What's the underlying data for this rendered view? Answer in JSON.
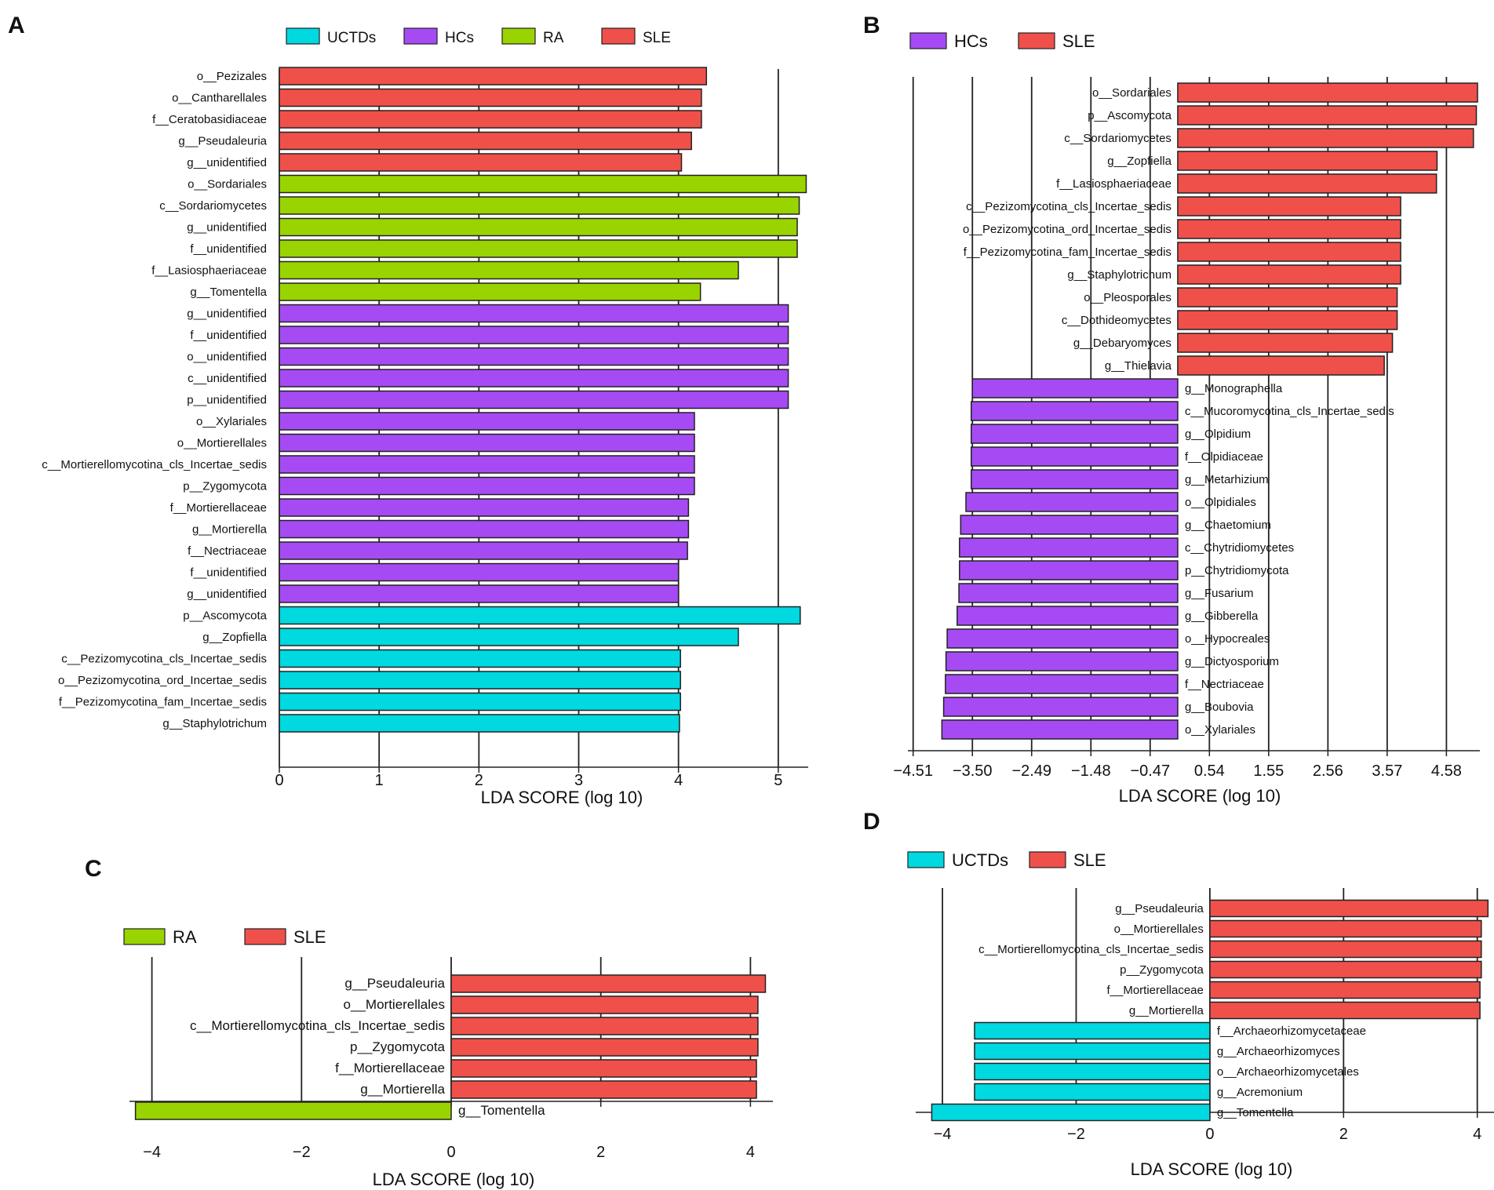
{
  "colors": {
    "UCTDs": "#00d9e0",
    "HCs": "#a64bf4",
    "RA": "#99d400",
    "SLE": "#f0504a"
  },
  "axis_label": "LDA SCORE (log 10)",
  "panels": {
    "A": "A",
    "B": "B",
    "C": "C",
    "D": "D"
  },
  "chart_data": [
    {
      "panel": "A",
      "type": "bar",
      "orientation": "horizontal",
      "xlabel": "LDA SCORE (log 10)",
      "xlim": [
        0,
        5.3
      ],
      "xticks": [
        "0",
        "1",
        "2",
        "3",
        "4",
        "5"
      ],
      "legend": [
        "UCTDs",
        "HCs",
        "RA",
        "SLE"
      ],
      "bars": [
        {
          "label": "o__Pezizales",
          "value": 4.28,
          "group": "SLE"
        },
        {
          "label": "o__Cantharellales",
          "value": 4.23,
          "group": "SLE"
        },
        {
          "label": "f__Ceratobasidiaceae",
          "value": 4.23,
          "group": "SLE"
        },
        {
          "label": "g__Pseudaleuria",
          "value": 4.13,
          "group": "SLE"
        },
        {
          "label": "g__unidentified",
          "value": 4.03,
          "group": "SLE"
        },
        {
          "label": "o__Sordariales",
          "value": 5.28,
          "group": "RA"
        },
        {
          "label": "c__Sordariomycetes",
          "value": 5.21,
          "group": "RA"
        },
        {
          "label": "g__unidentified",
          "value": 5.19,
          "group": "RA"
        },
        {
          "label": "f__unidentified",
          "value": 5.19,
          "group": "RA"
        },
        {
          "label": "f__Lasiosphaeriaceae",
          "value": 4.6,
          "group": "RA"
        },
        {
          "label": "g__Tomentella",
          "value": 4.22,
          "group": "RA"
        },
        {
          "label": "g__unidentified",
          "value": 5.1,
          "group": "HCs"
        },
        {
          "label": "f__unidentified",
          "value": 5.1,
          "group": "HCs"
        },
        {
          "label": "o__unidentified",
          "value": 5.1,
          "group": "HCs"
        },
        {
          "label": "c__unidentified",
          "value": 5.1,
          "group": "HCs"
        },
        {
          "label": "p__unidentified",
          "value": 5.1,
          "group": "HCs"
        },
        {
          "label": "o__Xylariales",
          "value": 4.16,
          "group": "HCs"
        },
        {
          "label": "o__Mortierellales",
          "value": 4.16,
          "group": "HCs"
        },
        {
          "label": "c__Mortierellomycotina_cls_Incertae_sedis",
          "value": 4.16,
          "group": "HCs"
        },
        {
          "label": "p__Zygomycota",
          "value": 4.16,
          "group": "HCs"
        },
        {
          "label": "f__Mortierellaceae",
          "value": 4.1,
          "group": "HCs"
        },
        {
          "label": "g__Mortierella",
          "value": 4.1,
          "group": "HCs"
        },
        {
          "label": "f__Nectriaceae",
          "value": 4.09,
          "group": "HCs"
        },
        {
          "label": "f__unidentified",
          "value": 4.0,
          "group": "HCs"
        },
        {
          "label": "g__unidentified",
          "value": 4.0,
          "group": "HCs"
        },
        {
          "label": "p__Ascomycota",
          "value": 5.22,
          "group": "UCTDs"
        },
        {
          "label": "g__Zopfiella",
          "value": 4.6,
          "group": "UCTDs"
        },
        {
          "label": "c__Pezizomycotina_cls_Incertae_sedis",
          "value": 4.02,
          "group": "UCTDs"
        },
        {
          "label": "o__Pezizomycotina_ord_Incertae_sedis",
          "value": 4.02,
          "group": "UCTDs"
        },
        {
          "label": "f__Pezizomycotina_fam_Incertae_sedis",
          "value": 4.02,
          "group": "UCTDs"
        },
        {
          "label": "g__Staphylotrichum",
          "value": 4.01,
          "group": "UCTDs"
        }
      ]
    },
    {
      "panel": "B",
      "type": "bar",
      "orientation": "horizontal",
      "xlabel": "LDA SCORE (log 10)",
      "xlim": [
        -4.6,
        5.15
      ],
      "xticks": [
        "−4.51",
        "−3.50",
        "−2.49",
        "−1.48",
        "−0.47",
        "0.54",
        "1.55",
        "2.56",
        "3.57",
        "4.58"
      ],
      "xtick_values": [
        -4.51,
        -3.5,
        -2.49,
        -1.48,
        -0.47,
        0.54,
        1.55,
        2.56,
        3.57,
        4.58
      ],
      "legend": [
        "HCs",
        "SLE"
      ],
      "bars": [
        {
          "label": "o__Sordariales",
          "value": 5.11,
          "group": "SLE"
        },
        {
          "label": "p__Ascomycota",
          "value": 5.09,
          "group": "SLE"
        },
        {
          "label": "c__Sordariomycetes",
          "value": 5.04,
          "group": "SLE"
        },
        {
          "label": "g__Zopfiella",
          "value": 4.42,
          "group": "SLE"
        },
        {
          "label": "f__Lasiosphaeriaceae",
          "value": 4.41,
          "group": "SLE"
        },
        {
          "label": "c__Pezizomycotina_cls_Incertae_sedis",
          "value": 3.8,
          "group": "SLE"
        },
        {
          "label": "o__Pezizomycotina_ord_Incertae_sedis",
          "value": 3.8,
          "group": "SLE"
        },
        {
          "label": "f__Pezizomycotina_fam_Incertae_sedis",
          "value": 3.8,
          "group": "SLE"
        },
        {
          "label": "g__Staphylotrichum",
          "value": 3.8,
          "group": "SLE"
        },
        {
          "label": "o__Pleosporales",
          "value": 3.74,
          "group": "SLE"
        },
        {
          "label": "c__Dothideomycetes",
          "value": 3.74,
          "group": "SLE"
        },
        {
          "label": "g__Debaryomyces",
          "value": 3.66,
          "group": "SLE"
        },
        {
          "label": "g__Thielavia",
          "value": 3.52,
          "group": "SLE"
        },
        {
          "label": "g__Monographella",
          "value": -3.5,
          "group": "HCs"
        },
        {
          "label": "c__Mucoromycotina_cls_Incertae_sedis",
          "value": -3.52,
          "group": "HCs"
        },
        {
          "label": "g__Olpidium",
          "value": -3.52,
          "group": "HCs"
        },
        {
          "label": "f__Olpidiaceae",
          "value": -3.52,
          "group": "HCs"
        },
        {
          "label": "g__Metarhizium",
          "value": -3.52,
          "group": "HCs"
        },
        {
          "label": "o__Olpidiales",
          "value": -3.61,
          "group": "HCs"
        },
        {
          "label": "g__Chaetomium",
          "value": -3.7,
          "group": "HCs"
        },
        {
          "label": "c__Chytridiomycetes",
          "value": -3.72,
          "group": "HCs"
        },
        {
          "label": "p__Chytridiomycota",
          "value": -3.72,
          "group": "HCs"
        },
        {
          "label": "g__Fusarium",
          "value": -3.73,
          "group": "HCs"
        },
        {
          "label": "g__Gibberella",
          "value": -3.76,
          "group": "HCs"
        },
        {
          "label": "o__Hypocreales",
          "value": -3.93,
          "group": "HCs"
        },
        {
          "label": "g__Dictyosporium",
          "value": -3.95,
          "group": "HCs"
        },
        {
          "label": "f__Nectriaceae",
          "value": -3.96,
          "group": "HCs"
        },
        {
          "label": "g__Boubovia",
          "value": -3.99,
          "group": "HCs"
        },
        {
          "label": "o__Xylariales",
          "value": -4.02,
          "group": "HCs"
        }
      ]
    },
    {
      "panel": "C",
      "type": "bar",
      "orientation": "horizontal",
      "xlabel": "LDA SCORE (log 10)",
      "xlim": [
        -4.3,
        4.3
      ],
      "xticks": [
        "−4",
        "−2",
        "0",
        "2",
        "4"
      ],
      "xtick_values": [
        -4,
        -2,
        0,
        2,
        4
      ],
      "legend": [
        "RA",
        "SLE"
      ],
      "bars": [
        {
          "label": "g__Pseudaleuria",
          "value": 4.2,
          "group": "SLE"
        },
        {
          "label": "o__Mortierellales",
          "value": 4.1,
          "group": "SLE"
        },
        {
          "label": "c__Mortierellomycotina_cls_Incertae_sedis",
          "value": 4.1,
          "group": "SLE"
        },
        {
          "label": "p__Zygomycota",
          "value": 4.1,
          "group": "SLE"
        },
        {
          "label": "f__Mortierellaceae",
          "value": 4.08,
          "group": "SLE"
        },
        {
          "label": "g__Mortierella",
          "value": 4.08,
          "group": "SLE"
        },
        {
          "label": "g__Tomentella",
          "value": -4.22,
          "group": "RA"
        }
      ]
    },
    {
      "panel": "D",
      "type": "bar",
      "orientation": "horizontal",
      "xlabel": "LDA SCORE (log 10)",
      "xlim": [
        -4.4,
        4.25
      ],
      "xticks": [
        "−4",
        "−2",
        "0",
        "2",
        "4"
      ],
      "xtick_values": [
        -4,
        -2,
        0,
        2,
        4
      ],
      "legend": [
        "UCTDs",
        "SLE"
      ],
      "bars": [
        {
          "label": "g__Pseudaleuria",
          "value": 4.16,
          "group": "SLE"
        },
        {
          "label": "o__Mortierellales",
          "value": 4.06,
          "group": "SLE"
        },
        {
          "label": "c__Mortierellomycotina_cls_Incertae_sedis",
          "value": 4.06,
          "group": "SLE"
        },
        {
          "label": "p__Zygomycota",
          "value": 4.06,
          "group": "SLE"
        },
        {
          "label": "f__Mortierellaceae",
          "value": 4.04,
          "group": "SLE"
        },
        {
          "label": "g__Mortierella",
          "value": 4.04,
          "group": "SLE"
        },
        {
          "label": "f__Archaeorhizomycetaceae",
          "value": -3.52,
          "group": "UCTDs"
        },
        {
          "label": "g__Archaeorhizomyces",
          "value": -3.52,
          "group": "UCTDs"
        },
        {
          "label": "o__Archaeorhizomycetales",
          "value": -3.52,
          "group": "UCTDs"
        },
        {
          "label": "g__Acremonium",
          "value": -3.52,
          "group": "UCTDs"
        },
        {
          "label": "g__Tomentella",
          "value": -4.16,
          "group": "UCTDs"
        }
      ]
    }
  ]
}
